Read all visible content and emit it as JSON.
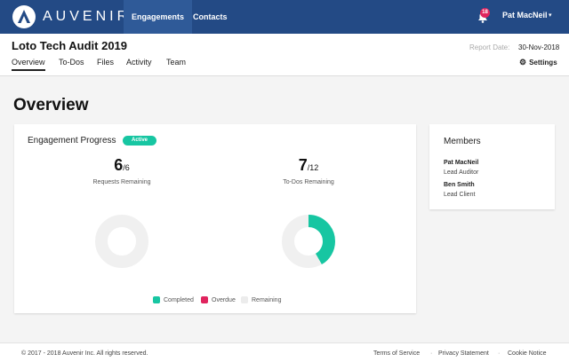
{
  "app": {
    "brand": "AUVENIR"
  },
  "topnav": {
    "items": [
      {
        "label": "Engagements",
        "active": true
      },
      {
        "label": "Contacts",
        "active": false
      }
    ],
    "notifications_count": "18",
    "user_name": "Pat MacNeil"
  },
  "engagement": {
    "title": "Loto Tech Audit 2019",
    "report_date_label": "Report Date:",
    "report_date": "30-Nov-2018",
    "settings_label": "Settings",
    "tabs": [
      {
        "label": "Overview",
        "active": true
      },
      {
        "label": "To-Dos",
        "active": false
      },
      {
        "label": "Files",
        "active": false
      },
      {
        "label": "Activity",
        "active": false
      },
      {
        "label": "Team",
        "active": false
      }
    ]
  },
  "page": {
    "title": "Overview"
  },
  "progress": {
    "title": "Engagement Progress",
    "status": "Active",
    "requests": {
      "remaining": "6",
      "total": "/6",
      "label": "Requests Remaining",
      "completed": 0,
      "overdue": 0,
      "remaining_count": 6
    },
    "todos": {
      "remaining": "7",
      "total": "/12",
      "label": "To-Dos Remaining",
      "completed": 5,
      "overdue": 0,
      "remaining_count": 7
    },
    "legend": {
      "completed": "Completed",
      "overdue": "Overdue",
      "remaining": "Remaining"
    },
    "colors": {
      "completed": "#17c6a2",
      "overdue": "#e0245e",
      "remaining": "#f0f0f0"
    }
  },
  "members": {
    "title": "Members",
    "list": [
      {
        "name": "Pat MacNeil",
        "role": "Lead Auditor"
      },
      {
        "name": "Ben Smith",
        "role": "Lead Client"
      }
    ]
  },
  "footer": {
    "copyright": "© 2017 - 2018 Auvenir Inc. All rights reserved.",
    "links": [
      "Terms of Service",
      "Privacy Statement",
      "Cookie Notice"
    ],
    "separator": "·"
  }
}
